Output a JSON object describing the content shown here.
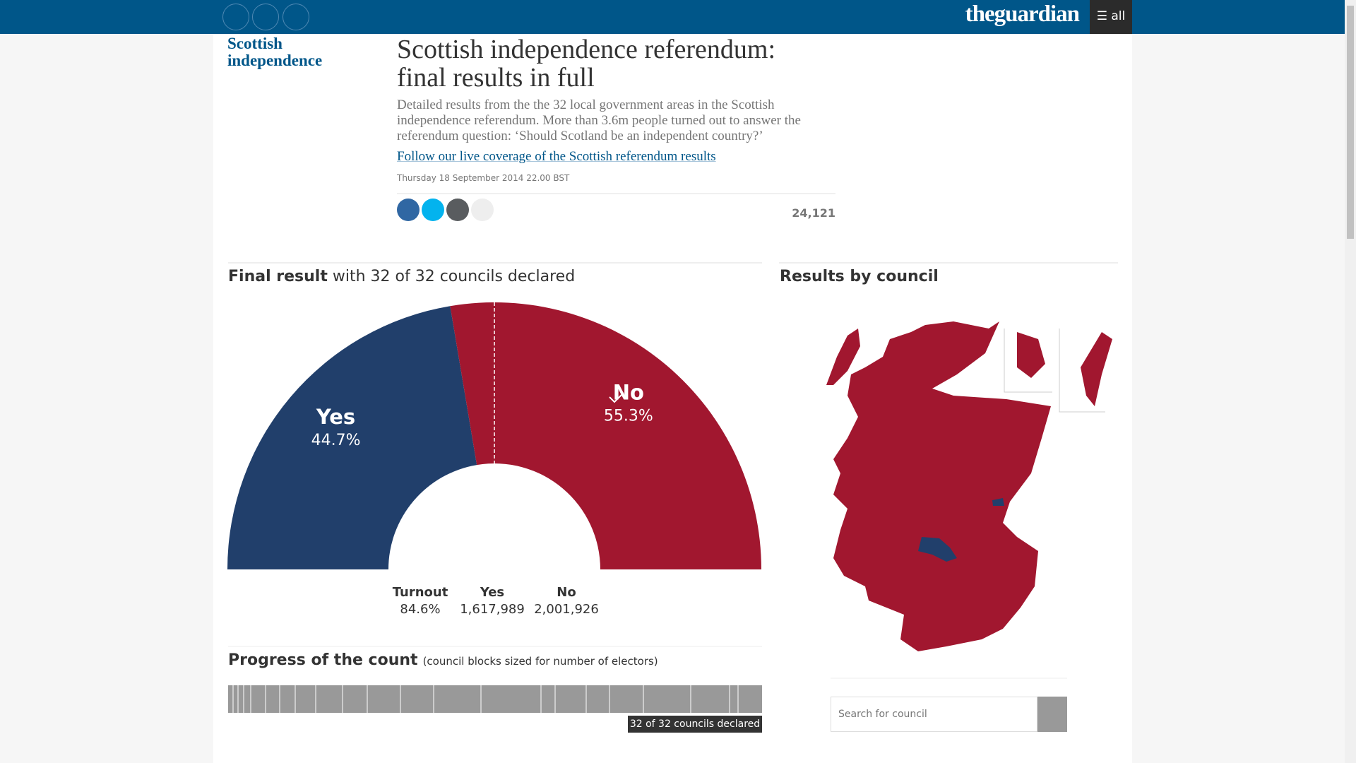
{
  "nav": {
    "brand": "theguardian",
    "menu": "all"
  },
  "section": "Scottish independence",
  "headline": "Scottish independence referendum: final results in full",
  "standfirst": "Detailed results from the the 32 local government areas in the Scottish independence referendum. More than 3.6m people turned out to answer the referendum question: ‘Should Scotland be an independent country?’",
  "link": "Follow our live coverage of the Scottish referendum results",
  "dateline": "Thursday 18 September 2014 22.00 BST",
  "share_count": "24,121",
  "result": {
    "title_bold": "Final result",
    "title_rest": "with 32 of 32 councils declared",
    "chart_data": {
      "type": "pie",
      "categories": [
        "Yes",
        "No"
      ],
      "values": [
        44.7,
        55.3
      ],
      "value_labels": [
        "44.7%",
        "55.3%"
      ],
      "colors": [
        "#213f6b",
        "#a1172f"
      ]
    },
    "stats": [
      {
        "label": "Turnout",
        "value": "84.6%"
      },
      {
        "label": "Yes",
        "value": "1,617,989"
      },
      {
        "label": "No",
        "value": "2,001,926"
      }
    ]
  },
  "progress": {
    "title": "Progress of the count",
    "note": "(council blocks sized for number of electors)",
    "badge": "32 of 32 councils declared"
  },
  "map": {
    "title": "Results by council",
    "search_placeholder": "Search for council"
  }
}
